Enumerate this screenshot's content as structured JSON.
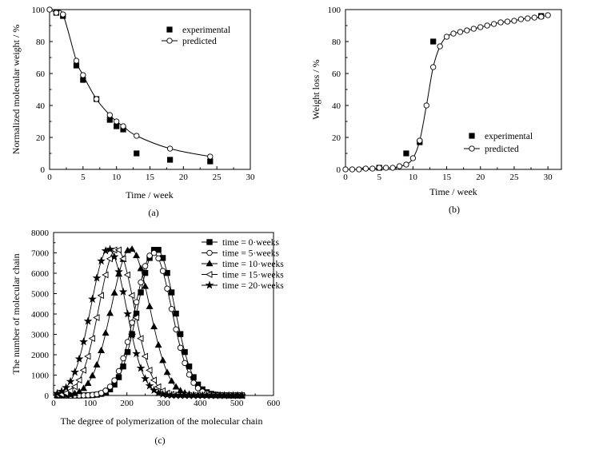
{
  "chart_data": [
    {
      "type": "scatter",
      "caption": "(a)",
      "xlabel": "Time / week",
      "ylabel": "Normalized molecular weight / %",
      "xlim": [
        0,
        30
      ],
      "ylim": [
        0,
        100
      ],
      "xticks": [
        0,
        5,
        10,
        15,
        20,
        25,
        30
      ],
      "yticks": [
        0,
        20,
        40,
        60,
        80,
        100
      ],
      "grid": false,
      "legend_position": "top-right",
      "series": [
        {
          "name": "experimental",
          "marker": "filled-square",
          "line": false,
          "points": [
            [
              1,
              98
            ],
            [
              2,
              96
            ],
            [
              4,
              65
            ],
            [
              5,
              56
            ],
            [
              7,
              44
            ],
            [
              9,
              31
            ],
            [
              10,
              27
            ],
            [
              11,
              25
            ],
            [
              13,
              10
            ],
            [
              18,
              6
            ],
            [
              24,
              5
            ]
          ]
        },
        {
          "name": "predicted",
          "marker": "open-circle",
          "line": true,
          "points": [
            [
              0,
              100
            ],
            [
              1,
              98
            ],
            [
              2,
              97
            ],
            [
              4,
              68
            ],
            [
              5,
              59
            ],
            [
              7,
              44
            ],
            [
              9,
              34
            ],
            [
              10,
              30
            ],
            [
              11,
              27
            ],
            [
              13,
              21
            ],
            [
              18,
              13
            ],
            [
              24,
              8
            ]
          ]
        }
      ]
    },
    {
      "type": "scatter",
      "caption": "(b)",
      "xlabel": "Time / week",
      "ylabel": "Weight loss / %",
      "xlim": [
        0,
        32
      ],
      "ylim": [
        0,
        100
      ],
      "xticks": [
        0,
        5,
        10,
        15,
        20,
        25,
        30
      ],
      "yticks": [
        0,
        20,
        40,
        60,
        80,
        100
      ],
      "grid": false,
      "legend_position": "bottom-right",
      "series": [
        {
          "name": "experimental",
          "marker": "filled-square",
          "line": false,
          "points": [
            [
              5,
              1
            ],
            [
              9,
              10
            ],
            [
              11,
              17
            ],
            [
              13,
              80
            ],
            [
              29,
              96
            ]
          ]
        },
        {
          "name": "predicted",
          "marker": "open-circle",
          "line": true,
          "points": [
            [
              0,
              0
            ],
            [
              1,
              0
            ],
            [
              2,
              0
            ],
            [
              3,
              0.5
            ],
            [
              4,
              0.5
            ],
            [
              5,
              1
            ],
            [
              6,
              1
            ],
            [
              7,
              1
            ],
            [
              8,
              2
            ],
            [
              9,
              3
            ],
            [
              10,
              7
            ],
            [
              11,
              18
            ],
            [
              12,
              40
            ],
            [
              13,
              64
            ],
            [
              14,
              77
            ],
            [
              15,
              83
            ],
            [
              16,
              85
            ],
            [
              17,
              86
            ],
            [
              18,
              87
            ],
            [
              19,
              88
            ],
            [
              20,
              89
            ],
            [
              21,
              90
            ],
            [
              22,
              91
            ],
            [
              23,
              92
            ],
            [
              24,
              92.5
            ],
            [
              25,
              93
            ],
            [
              26,
              94
            ],
            [
              27,
              94.5
            ],
            [
              28,
              95
            ],
            [
              29,
              95.5
            ],
            [
              30,
              96.5
            ]
          ]
        }
      ]
    },
    {
      "type": "line",
      "caption": "(c)",
      "xlabel": "The degree of polymerization of the molecular chain",
      "ylabel": "The number of molecular chain",
      "xlim": [
        0,
        600
      ],
      "ylim": [
        0,
        8000
      ],
      "xticks": [
        0,
        100,
        200,
        300,
        400,
        500,
        600
      ],
      "yticks": [
        0,
        1000,
        2000,
        3000,
        4000,
        5000,
        6000,
        7000,
        8000
      ],
      "grid": false,
      "legend_position": "top-right",
      "series": [
        {
          "name": "time = 0·weeks",
          "marker": "filled-square",
          "line": true,
          "mean": 280,
          "peak": 7200,
          "sigma": 50
        },
        {
          "name": "time = 5·weeks",
          "marker": "open-circle",
          "line": true,
          "mean": 272,
          "peak": 7000,
          "sigma": 50
        },
        {
          "name": "time = 10·weeks",
          "marker": "filled-triangle",
          "line": true,
          "mean": 210,
          "peak": 7200,
          "sigma": 52
        },
        {
          "name": "time = 15·weeks",
          "marker": "open-left-triangle",
          "line": true,
          "mean": 172,
          "peak": 7200,
          "sigma": 48
        },
        {
          "name": "time = 20·weeks",
          "marker": "filled-star",
          "line": true,
          "mean": 150,
          "peak": 7200,
          "sigma": 48
        }
      ]
    }
  ]
}
